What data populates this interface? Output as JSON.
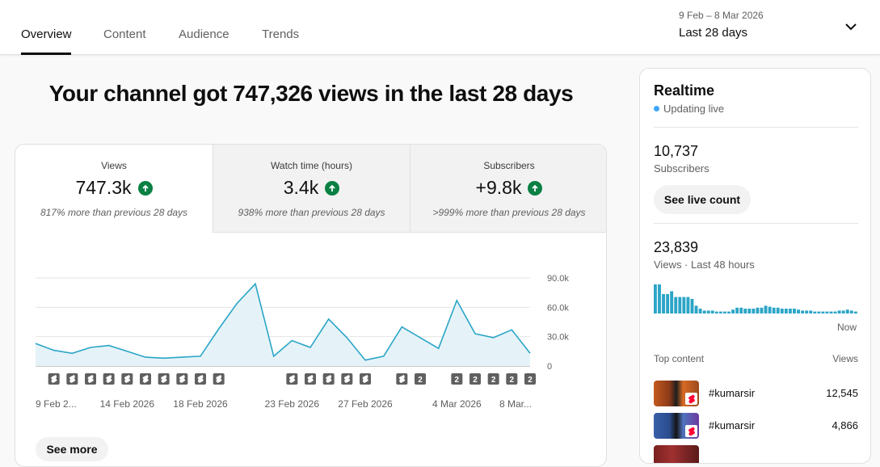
{
  "tabs": [
    {
      "label": "Overview",
      "active": true
    },
    {
      "label": "Content",
      "active": false
    },
    {
      "label": "Audience",
      "active": false
    },
    {
      "label": "Trends",
      "active": false
    }
  ],
  "date_range": {
    "dates": "9 Feb – 8 Mar 2026",
    "label": "Last 28 days"
  },
  "headline": "Your channel got 747,326 views in the last 28 days",
  "metrics": [
    {
      "label": "Views",
      "value": "747.3k",
      "sub": "817% more than previous 28 days",
      "trend": "up"
    },
    {
      "label": "Watch time (hours)",
      "value": "3.4k",
      "sub": "938% more than previous 28 days",
      "trend": "up"
    },
    {
      "label": "Subscribers",
      "value": "+9.8k",
      "sub": ">999% more than previous 28 days",
      "trend": "up"
    }
  ],
  "see_more_label": "See more",
  "chart_data": {
    "type": "area",
    "x": [
      "9 Feb 2026",
      "10 Feb 2026",
      "11 Feb 2026",
      "12 Feb 2026",
      "13 Feb 2026",
      "14 Feb 2026",
      "15 Feb 2026",
      "16 Feb 2026",
      "17 Feb 2026",
      "18 Feb 2026",
      "19 Feb 2026",
      "20 Feb 2026",
      "21 Feb 2026",
      "22 Feb 2026",
      "23 Feb 2026",
      "24 Feb 2026",
      "25 Feb 2026",
      "26 Feb 2026",
      "27 Feb 2026",
      "28 Feb 2026",
      "1 Mar 2026",
      "2 Mar 2026",
      "3 Mar 2026",
      "4 Mar 2026",
      "5 Mar 2026",
      "6 Mar 2026",
      "7 Mar 2026",
      "8 Mar 2026"
    ],
    "values": [
      23000,
      16000,
      13000,
      19000,
      21000,
      15000,
      9000,
      8000,
      9000,
      10000,
      38000,
      64000,
      84000,
      10000,
      26000,
      19000,
      48000,
      29000,
      6000,
      10000,
      40000,
      29000,
      18000,
      67000,
      33000,
      29000,
      37000,
      13000
    ],
    "x_tick_labels": [
      "9 Feb 2...",
      "14 Feb 2026",
      "18 Feb 2026",
      "23 Feb 2026",
      "27 Feb 2026",
      "4 Mar 2026",
      "8 Mar..."
    ],
    "x_tick_index": [
      0,
      5,
      9,
      14,
      18,
      23,
      27
    ],
    "y_ticks": [
      0,
      30000,
      60000,
      90000
    ],
    "y_tick_labels": [
      "0",
      "30.0k",
      "60.0k",
      "90.0k"
    ],
    "ylim": [
      0,
      90000
    ],
    "grid": true,
    "line_color": "#2ba5c7",
    "fill_color": "#e5f3f8",
    "upload_markers": [
      {
        "day": 1,
        "kind": "short"
      },
      {
        "day": 2,
        "kind": "short"
      },
      {
        "day": 3,
        "kind": "short"
      },
      {
        "day": 4,
        "kind": "short"
      },
      {
        "day": 5,
        "kind": "short"
      },
      {
        "day": 6,
        "kind": "short"
      },
      {
        "day": 7,
        "kind": "short"
      },
      {
        "day": 8,
        "kind": "short"
      },
      {
        "day": 9,
        "kind": "short"
      },
      {
        "day": 10,
        "kind": "short"
      },
      {
        "day": 14,
        "kind": "short"
      },
      {
        "day": 15,
        "kind": "short"
      },
      {
        "day": 16,
        "kind": "short"
      },
      {
        "day": 17,
        "kind": "short"
      },
      {
        "day": 18,
        "kind": "short"
      },
      {
        "day": 20,
        "kind": "short"
      },
      {
        "day": 21,
        "kind": "count",
        "label": "2"
      },
      {
        "day": 23,
        "kind": "count",
        "label": "2"
      },
      {
        "day": 24,
        "kind": "count",
        "label": "2"
      },
      {
        "day": 25,
        "kind": "count",
        "label": "2"
      },
      {
        "day": 26,
        "kind": "count",
        "label": "2"
      },
      {
        "day": 27,
        "kind": "count",
        "label": "2"
      }
    ]
  },
  "realtime": {
    "title": "Realtime",
    "status": "Updating live",
    "subscribers": "10,737",
    "subscribers_label": "Subscribers",
    "live_count_button": "See live count",
    "views_48h": "23,839",
    "views_48h_label": "Views · Last 48 hours",
    "hourly_views_relative": [
      30,
      30,
      20,
      20,
      23,
      17,
      17,
      17,
      17,
      15,
      8,
      5,
      3,
      3,
      3,
      2,
      2,
      2,
      2,
      4,
      6,
      6,
      5,
      5,
      5,
      6,
      6,
      8,
      7,
      6,
      6,
      5,
      5,
      5,
      5,
      4,
      3,
      3,
      3,
      2,
      2,
      2,
      2,
      2,
      2,
      3,
      3,
      4,
      3,
      2
    ],
    "now_label": "Now",
    "bar_color": "#2ba5c7",
    "top_content_label": "Top content",
    "views_col_label": "Views",
    "top_content": [
      {
        "title": "#kumarsir",
        "views": "12,545"
      },
      {
        "title": "#kumarsir",
        "views": "4,866"
      },
      {
        "title": "",
        "views": ""
      }
    ]
  }
}
